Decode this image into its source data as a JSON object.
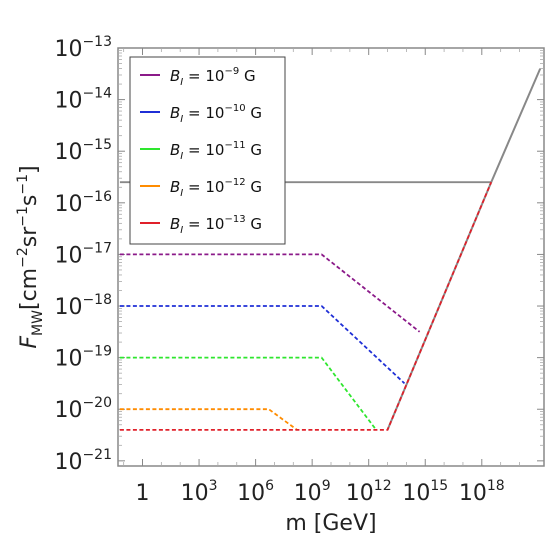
{
  "chart_data": {
    "type": "line",
    "xlabel": "m [GeV]",
    "ylabel": "F_MW[cm^-2sr^-1s^-1]",
    "xscale": "log",
    "yscale": "log",
    "xlim_log10": [
      -1.3,
      21.3
    ],
    "ylim_log10": [
      -21.1,
      -13
    ],
    "x_ticks": [
      {
        "label": "1",
        "base": "",
        "exp": "",
        "log10": 0
      },
      {
        "label": "10^3",
        "base": "10",
        "exp": "3",
        "log10": 3
      },
      {
        "label": "10^6",
        "base": "10",
        "exp": "6",
        "log10": 6
      },
      {
        "label": "10^9",
        "base": "10",
        "exp": "9",
        "log10": 9
      },
      {
        "label": "10^12",
        "base": "10",
        "exp": "12",
        "log10": 12
      },
      {
        "label": "10^15",
        "base": "10",
        "exp": "15",
        "log10": 15
      },
      {
        "label": "10^18",
        "base": "10",
        "exp": "18",
        "log10": 18
      }
    ],
    "y_ticks": [
      {
        "base": "10",
        "exp": "−21",
        "log10": -21
      },
      {
        "base": "10",
        "exp": "−20",
        "log10": -20
      },
      {
        "base": "10",
        "exp": "−19",
        "log10": -19
      },
      {
        "base": "10",
        "exp": "−18",
        "log10": -18
      },
      {
        "base": "10",
        "exp": "−17",
        "log10": -17
      },
      {
        "base": "10",
        "exp": "−16",
        "log10": -16
      },
      {
        "base": "10",
        "exp": "−15",
        "log10": -15
      },
      {
        "base": "10",
        "exp": "−14",
        "log10": -14
      },
      {
        "base": "10",
        "exp": "−13",
        "log10": -13
      }
    ],
    "grid": false,
    "legend_position": "top-left",
    "series": [
      {
        "name": "B_I = 10^-9 G",
        "legend_exp": "−9",
        "color": "#8b1a89",
        "style": "dashed",
        "points_log10": [
          [
            -1.2,
            -17.0
          ],
          [
            9.5,
            -17.0
          ],
          [
            14.7,
            -18.5
          ]
        ]
      },
      {
        "name": "B_I = 10^-10 G",
        "legend_exp": "−10",
        "color": "#1f2fd6",
        "style": "dashed",
        "points_log10": [
          [
            -1.2,
            -18.0
          ],
          [
            9.5,
            -18.0
          ],
          [
            13.9,
            -19.5
          ]
        ]
      },
      {
        "name": "B_I = 10^-11 G",
        "legend_exp": "−11",
        "color": "#2ee62e",
        "style": "dashed",
        "points_log10": [
          [
            -1.2,
            -19.0
          ],
          [
            9.5,
            -19.0
          ],
          [
            12.4,
            -20.4
          ]
        ]
      },
      {
        "name": "B_I = 10^-12 G",
        "legend_exp": "−12",
        "color": "#ff8c00",
        "style": "dashed",
        "points_log10": [
          [
            -1.2,
            -20.0
          ],
          [
            6.7,
            -20.0
          ],
          [
            8.2,
            -20.4
          ]
        ]
      },
      {
        "name": "B_I = 10^-13 G",
        "legend_exp": "−13",
        "color": "#e0202a",
        "style": "dashed",
        "points_log10": [
          [
            -1.2,
            -20.4
          ],
          [
            13.0,
            -20.4
          ],
          [
            18.5,
            -15.6
          ]
        ]
      }
    ],
    "envelope": {
      "color": "#888888",
      "style": "solid",
      "horizontal_log10": [
        [
          -1.2,
          -15.6
        ],
        [
          18.5,
          -15.6
        ]
      ],
      "rising_log10": [
        [
          13.0,
          -20.4
        ],
        [
          18.5,
          -15.6
        ],
        [
          21.1,
          -13.4
        ]
      ]
    }
  }
}
